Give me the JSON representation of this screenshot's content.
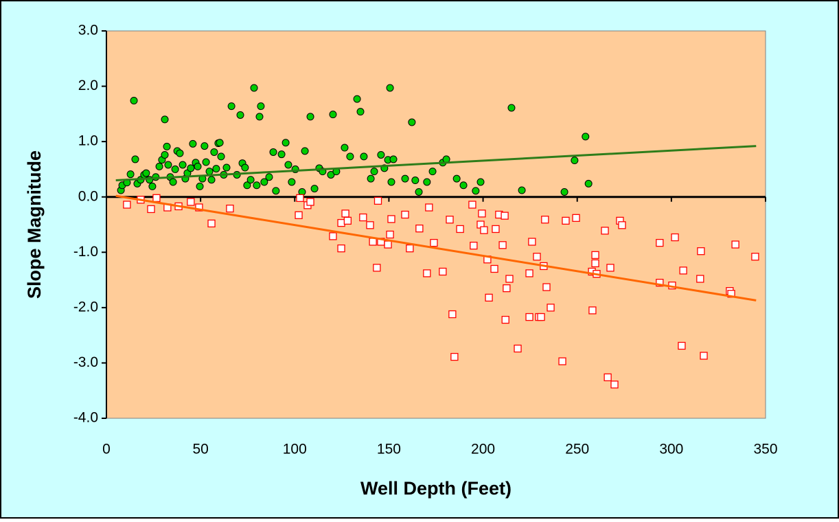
{
  "chart_data": {
    "type": "scatter",
    "x_label": "Well Depth (Feet)",
    "y_label": "Slope Magnitude",
    "xlim": [
      0,
      350
    ],
    "xticks": [
      0,
      50,
      100,
      150,
      200,
      250,
      300,
      350
    ],
    "ylim": [
      -4,
      3
    ],
    "yticks": [
      {
        "value": -4,
        "label": "-4.0"
      },
      {
        "value": -3,
        "label": "-3.0"
      },
      {
        "value": -2,
        "label": "-2.0"
      },
      {
        "value": -1,
        "label": "-1.0"
      },
      {
        "value": 0,
        "label": "0.0"
      },
      {
        "value": 1,
        "label": "1.0"
      },
      {
        "value": 2,
        "label": "2.0"
      },
      {
        "value": 3,
        "label": "3.0"
      }
    ],
    "series": [
      {
        "type": "scatter",
        "marker": "circle",
        "color": "#00cc00",
        "x": [
          7.7,
          8.4,
          10.9,
          12.8,
          14.6,
          15.3,
          16.4,
          18.2,
          20,
          21.1,
          22.9,
          24.4,
          26.2,
          28.1,
          29.5,
          31,
          32.1,
          32.8,
          33.9,
          35.4,
          36.5,
          37.6,
          39,
          40.5,
          41.9,
          31,
          43,
          44.8,
          45.9,
          47.4,
          48.5,
          49.6,
          51,
          52.1,
          52.9,
          54.7,
          55.8,
          57.2,
          58.3,
          59.4,
          60.2,
          60.9,
          62.3,
          63.8,
          66.4,
          69.3,
          71.1,
          72.2,
          73.6,
          74.7,
          76.6,
          78.4,
          79.8,
          81.3,
          82,
          83.8,
          86.4,
          88.6,
          90,
          93,
          95.2,
          96.6,
          98.4,
          100.3,
          103.9,
          105.4,
          108.3,
          110.5,
          113,
          114.8,
          119.2,
          120.3,
          122.1,
          126.5,
          129.4,
          133.1,
          134.9,
          136.7,
          140.4,
          142.2,
          145.8,
          147.6,
          149.5,
          150.6,
          151.3,
          152.4,
          158.6,
          162.2,
          164,
          165.9,
          170.2,
          173.2,
          178.6,
          180.5,
          186,
          189.6,
          196.1,
          198.7,
          215.1,
          220.6,
          243.2,
          248.6,
          254.4,
          256
        ],
        "values": [
          0.12,
          0.21,
          0.26,
          0.41,
          1.74,
          0.68,
          0.24,
          0.31,
          0.4,
          0.43,
          0.31,
          0.19,
          0.36,
          0.55,
          0.67,
          0.76,
          0.91,
          0.58,
          0.36,
          0.27,
          0.5,
          0.83,
          0.79,
          0.58,
          0.33,
          1.4,
          0.43,
          0.52,
          0.96,
          0.62,
          0.55,
          0.19,
          0.33,
          0.92,
          0.63,
          0.46,
          0.31,
          0.81,
          0.51,
          0.97,
          0.98,
          0.73,
          0.4,
          0.53,
          1.64,
          0.4,
          1.48,
          0.61,
          0.53,
          0.21,
          0.31,
          1.97,
          0.21,
          1.45,
          1.64,
          0.27,
          0.36,
          0.81,
          0.11,
          0.77,
          0.98,
          0.58,
          0.27,
          0.5,
          0.09,
          0.83,
          1.45,
          0.15,
          0.52,
          0.46,
          0.4,
          1.49,
          0.46,
          0.89,
          0.73,
          1.77,
          1.54,
          0.73,
          0.33,
          0.46,
          0.76,
          0.52,
          0.67,
          1.97,
          0.27,
          0.68,
          0.33,
          1.35,
          0.3,
          0.09,
          0.27,
          0.46,
          0.62,
          0.68,
          0.33,
          0.21,
          0.11,
          0.27,
          1.61,
          0.12,
          0.09,
          0.66,
          1.09,
          0.24
        ]
      },
      {
        "type": "scatter",
        "marker": "square",
        "color": "#ff0000",
        "x": [
          10.9,
          18.2,
          23.7,
          26.6,
          32.4,
          38.3,
          44.8,
          49.2,
          55.8,
          65.6,
          102.1,
          102.8,
          106.8,
          108.3,
          120.3,
          124.7,
          124.7,
          126.9,
          128.1,
          136.3,
          140,
          141.5,
          143.6,
          144.2,
          145.8,
          149.5,
          150.6,
          151.3,
          158.6,
          161.1,
          166.2,
          170.2,
          171.3,
          173.9,
          178.6,
          182.3,
          183.7,
          184.8,
          187.8,
          194.3,
          195,
          198.7,
          199.4,
          200.5,
          202.3,
          203.1,
          206,
          206.7,
          208.5,
          210.4,
          211.5,
          211.9,
          212.5,
          214,
          218.4,
          224.6,
          224.6,
          226,
          228.6,
          229.7,
          230.8,
          232.2,
          232.9,
          233.7,
          235.9,
          242.1,
          243.9,
          249.4,
          257.8,
          258.1,
          259.6,
          259.6,
          260.3,
          264.7,
          266.2,
          267.6,
          269.8,
          272.7,
          273.8,
          293.8,
          293.8,
          300.4,
          301.9,
          305.5,
          306.3,
          315.3,
          315.7,
          317.2,
          331,
          331.8,
          334,
          344.5
        ],
        "values": [
          -0.14,
          -0.05,
          -0.22,
          -0.02,
          -0.19,
          -0.17,
          -0.09,
          -0.19,
          -0.48,
          -0.21,
          -0.33,
          -0.02,
          -0.15,
          -0.09,
          -0.71,
          -0.47,
          -0.93,
          -0.3,
          -0.43,
          -0.37,
          -0.51,
          -0.81,
          -1.28,
          -0.07,
          -0.81,
          -0.86,
          -0.68,
          -0.4,
          -0.32,
          -0.93,
          -0.57,
          -1.38,
          -0.19,
          -0.83,
          -1.35,
          -0.41,
          -2.12,
          -2.89,
          -0.58,
          -0.14,
          -0.88,
          -0.5,
          -0.3,
          -0.6,
          -1.13,
          -1.82,
          -1.3,
          -0.58,
          -0.32,
          -0.87,
          -0.34,
          -2.22,
          -1.65,
          -1.48,
          -2.74,
          -1.38,
          -2.17,
          -0.81,
          -1.08,
          -2.17,
          -2.17,
          -1.25,
          -0.41,
          -1.63,
          -2,
          -2.97,
          -0.43,
          -0.38,
          -1.35,
          -2.05,
          -1.05,
          -1.2,
          -1.39,
          -0.61,
          -3.26,
          -1.28,
          -3.39,
          -0.43,
          -0.51,
          -0.83,
          -1.55,
          -1.6,
          -0.73,
          -2.69,
          -1.33,
          -1.48,
          -0.98,
          -2.87,
          -1.7,
          -1.75,
          -0.86,
          -1.08
        ]
      },
      {
        "type": "line",
        "color": "#2e7d1a",
        "x": [
          5,
          345
        ],
        "values": [
          0.3,
          0.92
        ]
      },
      {
        "type": "line",
        "color": "#ff6600",
        "x": [
          5,
          345
        ],
        "values": [
          0.02,
          -1.87
        ]
      }
    ]
  }
}
